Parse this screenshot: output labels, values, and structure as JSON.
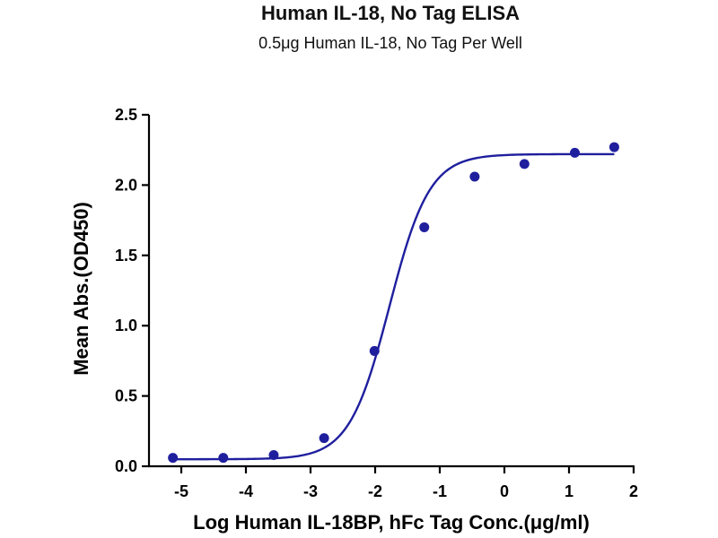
{
  "chart_data": {
    "type": "scatter",
    "title": "Human IL-18, No Tag ELISA",
    "subtitle": "0.5μg Human IL-18, No Tag Per Well",
    "xlabel": "Log Human IL-18BP, hFc Tag Conc.(μg/ml)",
    "ylabel": "Mean Abs.(OD450)",
    "xlim": [
      -5.5,
      2
    ],
    "ylim": [
      0,
      2.5
    ],
    "x_ticks": [
      -5,
      -4,
      -3,
      -2,
      -1,
      0,
      1,
      2
    ],
    "x_tick_labels": [
      "-5",
      "-4",
      "-3",
      "-2",
      "-1",
      "0",
      "1",
      "2"
    ],
    "y_ticks": [
      0,
      0.5,
      1.0,
      1.5,
      2.0,
      2.5
    ],
    "y_tick_labels": [
      "0.0",
      "0.5",
      "1.0",
      "1.5",
      "2.0",
      "2.5"
    ],
    "grid": false,
    "color": "#1f1f9e",
    "series": [
      {
        "x": [
          -5.13,
          -4.35,
          -3.57,
          -2.79,
          -2.01,
          -1.24,
          -0.46,
          0.31,
          1.09,
          1.7
        ],
        "y": [
          0.06,
          0.06,
          0.08,
          0.2,
          0.82,
          1.7,
          2.06,
          2.15,
          2.23,
          2.27
        ]
      }
    ],
    "fit_curve": {
      "model": "4PL",
      "bottom": 0.05,
      "top": 2.22,
      "log_ec50": -1.78,
      "hill_slope": 1.4
    }
  }
}
